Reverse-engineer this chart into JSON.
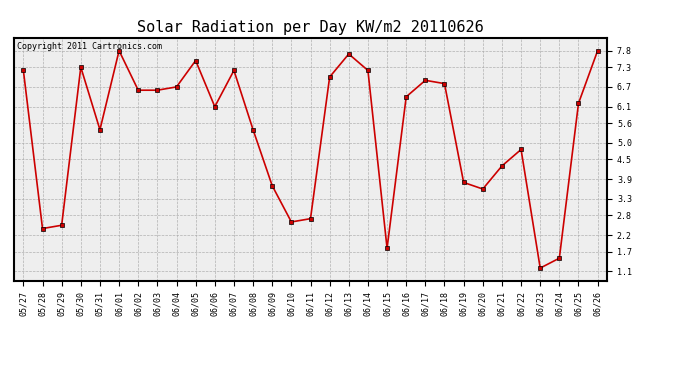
{
  "title": "Solar Radiation per Day KW/m2 20110626",
  "copyright_text": "Copyright 2011 Cartronics.com",
  "dates": [
    "05/27",
    "05/28",
    "05/29",
    "05/30",
    "05/31",
    "06/01",
    "06/02",
    "06/03",
    "06/04",
    "06/05",
    "06/06",
    "06/07",
    "06/08",
    "06/09",
    "06/10",
    "06/11",
    "06/12",
    "06/13",
    "06/14",
    "06/15",
    "06/16",
    "06/17",
    "06/18",
    "06/19",
    "06/20",
    "06/21",
    "06/22",
    "06/23",
    "06/24",
    "06/25",
    "06/26"
  ],
  "values": [
    7.2,
    2.4,
    2.5,
    7.3,
    5.4,
    7.8,
    6.6,
    6.6,
    6.7,
    7.5,
    6.1,
    7.2,
    5.4,
    3.7,
    2.6,
    2.7,
    7.0,
    7.7,
    7.2,
    1.8,
    6.4,
    6.9,
    6.8,
    3.8,
    3.6,
    4.3,
    4.8,
    1.2,
    1.5,
    6.2,
    7.8
  ],
  "line_color": "#cc0000",
  "marker": "s",
  "marker_size": 2.5,
  "background_color": "#ffffff",
  "plot_bg_color": "#eeeeee",
  "grid_color": "#aaaaaa",
  "ylim": [
    0.8,
    8.2
  ],
  "yticks": [
    1.1,
    1.7,
    2.2,
    2.8,
    3.3,
    3.9,
    4.5,
    5.0,
    5.6,
    6.1,
    6.7,
    7.3,
    7.8
  ],
  "title_fontsize": 11,
  "tick_fontsize": 6,
  "copyright_fontsize": 6
}
